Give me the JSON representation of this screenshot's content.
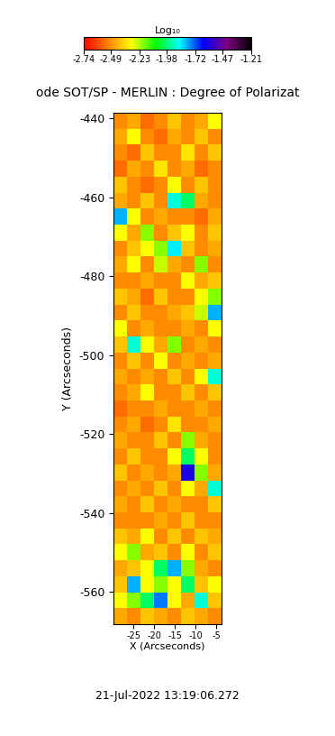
{
  "chart_data": {
    "type": "heatmap",
    "title": "ode SOT/SP - MERLIN : Degree of Polarizat",
    "xlabel": "X (Arcseconds)",
    "ylabel": "Y (Arcseconds)",
    "annotations": [
      "21-Jul-2022 13:19:06.272"
    ],
    "xlim": [
      -29.8,
      -3.7
    ],
    "ylim": [
      -568.2,
      -438.6
    ],
    "xticks": [
      -25,
      -20,
      -15,
      -10,
      -5
    ],
    "yticks": [
      -440,
      -460,
      -480,
      -500,
      -520,
      -540,
      -560
    ],
    "x_edges": [
      -29.8,
      -26.54,
      -23.28,
      -20.01,
      -16.75,
      -13.49,
      -10.22,
      -6.96,
      -3.7
    ],
    "y_edges": [
      -438.6,
      -442.65,
      -446.7,
      -450.75,
      -454.8,
      -458.85,
      -462.9,
      -466.95,
      -471.0,
      -475.05,
      -479.1,
      -483.15,
      -487.2,
      -491.25,
      -495.3,
      -499.35,
      -503.4,
      -507.45,
      -511.5,
      -515.55,
      -519.6,
      -523.65,
      -527.7,
      -531.75,
      -535.8,
      -539.85,
      -543.9,
      -547.95,
      -552.0,
      -556.05,
      -560.1,
      -564.15,
      -568.2
    ],
    "cells": [
      [
        -2.5,
        -2.45,
        -2.55,
        -2.5,
        -2.4,
        -2.5,
        -2.45,
        -2.3
      ],
      [
        -2.45,
        -2.3,
        -2.5,
        -2.55,
        -2.45,
        -2.5,
        -2.4,
        -2.5
      ],
      [
        -2.5,
        -2.55,
        -2.4,
        -2.5,
        -2.5,
        -2.35,
        -2.5,
        -2.4
      ],
      [
        -2.55,
        -2.45,
        -2.5,
        -2.35,
        -2.5,
        -2.45,
        -2.55,
        -2.5
      ],
      [
        -2.4,
        -2.5,
        -2.55,
        -2.5,
        -2.3,
        -2.5,
        -2.4,
        -2.5
      ],
      [
        -2.45,
        -2.5,
        -2.4,
        -2.5,
        -1.9,
        -2.0,
        -2.45,
        -2.5
      ],
      [
        -1.8,
        -2.3,
        -2.5,
        -2.45,
        -2.5,
        -2.5,
        -2.55,
        -2.45
      ],
      [
        -2.3,
        -2.45,
        -2.2,
        -2.5,
        -2.4,
        -2.3,
        -2.5,
        -2.4
      ],
      [
        -2.5,
        -2.4,
        -2.3,
        -2.2,
        -1.85,
        -2.4,
        -2.5,
        -2.45
      ],
      [
        -2.45,
        -2.3,
        -2.5,
        -2.25,
        -2.45,
        -2.5,
        -2.2,
        -2.5
      ],
      [
        -2.5,
        -2.5,
        -2.45,
        -2.5,
        -2.5,
        -2.3,
        -2.45,
        -2.4
      ],
      [
        -2.4,
        -2.45,
        -2.55,
        -2.4,
        -2.5,
        -2.5,
        -2.3,
        -2.2
      ],
      [
        -2.5,
        -2.4,
        -2.5,
        -2.5,
        -2.45,
        -2.4,
        -2.25,
        -1.8
      ],
      [
        -2.3,
        -2.5,
        -2.45,
        -2.5,
        -2.5,
        -2.45,
        -2.5,
        -2.3
      ],
      [
        -2.4,
        -1.9,
        -2.3,
        -2.45,
        -2.2,
        -2.5,
        -2.45,
        -2.5
      ],
      [
        -2.5,
        -2.4,
        -2.5,
        -2.3,
        -2.5,
        -2.45,
        -2.5,
        -2.45
      ],
      [
        -2.45,
        -2.5,
        -2.45,
        -2.5,
        -2.4,
        -2.5,
        -2.3,
        -1.9
      ],
      [
        -2.5,
        -2.45,
        -2.3,
        -2.5,
        -2.5,
        -2.4,
        -2.5,
        -2.4
      ],
      [
        -2.55,
        -2.5,
        -2.5,
        -2.45,
        -2.5,
        -2.5,
        -2.45,
        -2.5
      ],
      [
        -2.5,
        -2.45,
        -2.55,
        -2.5,
        -2.35,
        -2.5,
        -2.5,
        -2.45
      ],
      [
        -2.45,
        -2.5,
        -2.5,
        -2.4,
        -2.5,
        -2.2,
        -2.45,
        -2.5
      ],
      [
        -2.5,
        -2.4,
        -2.5,
        -2.5,
        -2.3,
        -2.0,
        -2.3,
        -2.5
      ],
      [
        -2.4,
        -2.5,
        -2.45,
        -2.5,
        -2.45,
        -1.6,
        -2.2,
        -2.45
      ],
      [
        -2.5,
        -2.45,
        -2.5,
        -2.4,
        -2.5,
        -2.3,
        -2.45,
        -1.9
      ],
      [
        -2.45,
        -2.5,
        -2.4,
        -2.5,
        -2.45,
        -2.5,
        -2.5,
        -2.4
      ],
      [
        -2.5,
        -2.5,
        -2.5,
        -2.45,
        -2.5,
        -2.4,
        -2.5,
        -2.5
      ],
      [
        -2.4,
        -2.45,
        -2.3,
        -2.5,
        -2.4,
        -2.5,
        -2.4,
        -2.45
      ],
      [
        -2.3,
        -2.2,
        -2.45,
        -2.4,
        -2.5,
        -2.3,
        -2.5,
        -2.4
      ],
      [
        -2.45,
        -2.4,
        -2.3,
        -2.0,
        -1.8,
        -2.2,
        -2.45,
        -2.5
      ],
      [
        -2.4,
        -1.8,
        -2.3,
        -2.2,
        -2.3,
        -2.0,
        -2.4,
        -2.3
      ],
      [
        -2.3,
        -2.2,
        -2.0,
        -1.75,
        -2.3,
        -2.45,
        -1.9,
        -2.4
      ],
      [
        -2.45,
        -2.5,
        -2.4,
        -2.45,
        -2.5,
        -2.4,
        -2.45,
        -2.5
      ]
    ],
    "colorbar": {
      "label": "Log₁₀",
      "range": [
        -2.74,
        -1.21
      ],
      "ticks": [
        -2.74,
        -2.49,
        -2.23,
        -1.98,
        -1.72,
        -1.47,
        -1.21
      ]
    }
  }
}
